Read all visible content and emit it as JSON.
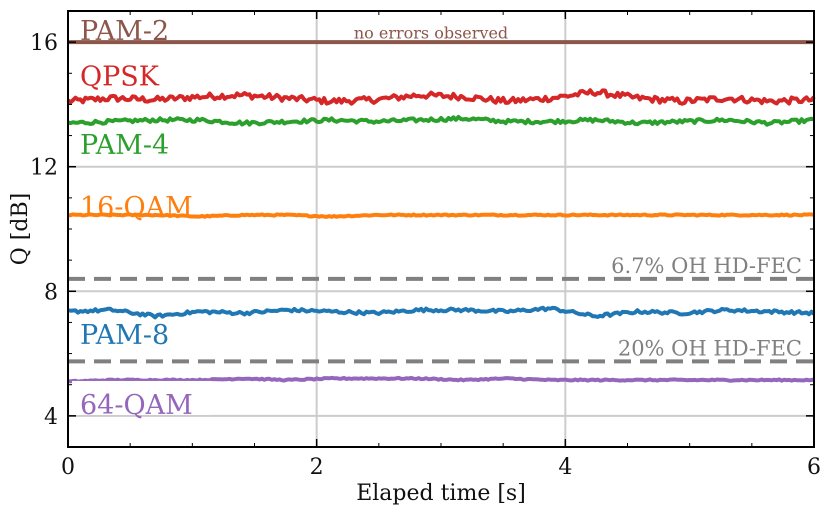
{
  "chart_data": {
    "type": "line",
    "xlabel": "Elaped time [s]",
    "ylabel": "Q [dB]",
    "xlim": [
      0,
      6
    ],
    "ylim": [
      3,
      17
    ],
    "xticks": [
      "0",
      "2",
      "4",
      "6"
    ],
    "yticks": [
      "4",
      "8",
      "12",
      "16"
    ],
    "grid": true,
    "series": [
      {
        "name": "PAM-2",
        "color": "#8c564b",
        "mean": 16.0,
        "noise": 0,
        "values": [
          16.0,
          16.0
        ]
      },
      {
        "name": "QPSK",
        "color": "#d62728",
        "mean": 14.15,
        "noise": 0.1,
        "values": [
          14.1,
          14.2,
          14.15,
          14.25,
          14.3,
          14.2,
          14.1,
          14.15,
          14.3,
          14.25,
          14.1,
          14.2,
          14.4,
          14.2,
          14.1,
          14.2,
          14.1,
          14.15
        ]
      },
      {
        "name": "PAM-4",
        "color": "#2ca02c",
        "mean": 13.45,
        "noise": 0.06,
        "values": [
          13.4,
          13.45,
          13.5,
          13.5,
          13.4,
          13.45,
          13.5,
          13.45,
          13.5,
          13.55,
          13.45,
          13.45,
          13.5,
          13.4,
          13.45,
          13.5,
          13.4,
          13.5
        ]
      },
      {
        "name": "16-QAM",
        "color": "#ff7f0e",
        "mean": 10.45,
        "noise": 0.02,
        "values": [
          10.45,
          10.45,
          10.45,
          10.4,
          10.45,
          10.45,
          10.4,
          10.45,
          10.45,
          10.45,
          10.45,
          10.45,
          10.45,
          10.45,
          10.45,
          10.45,
          10.45,
          10.45
        ]
      },
      {
        "name": "PAM-8",
        "color": "#1f77b4",
        "mean": 7.4,
        "noise": 0.05,
        "values": [
          7.35,
          7.4,
          7.2,
          7.35,
          7.3,
          7.4,
          7.35,
          7.3,
          7.4,
          7.4,
          7.35,
          7.45,
          7.2,
          7.35,
          7.3,
          7.4,
          7.35,
          7.3
        ]
      },
      {
        "name": "64-QAM",
        "color": "#9467bd",
        "mean": 5.15,
        "noise": 0.02,
        "values": [
          5.1,
          5.15,
          5.15,
          5.15,
          5.2,
          5.15,
          5.2,
          5.2,
          5.2,
          5.15,
          5.2,
          5.15,
          5.15,
          5.15,
          5.15,
          5.15,
          5.15,
          5.15
        ]
      }
    ],
    "thresholds": [
      {
        "label": "6.7% OH HD-FEC",
        "value": 8.4,
        "color": "#808080"
      },
      {
        "label": "20% OH HD-FEC",
        "value": 5.75,
        "color": "#808080"
      }
    ],
    "annotations": [
      {
        "text": "no errors observed",
        "x": 3.0,
        "y": 16.25,
        "color": "#8c564b"
      }
    ]
  }
}
